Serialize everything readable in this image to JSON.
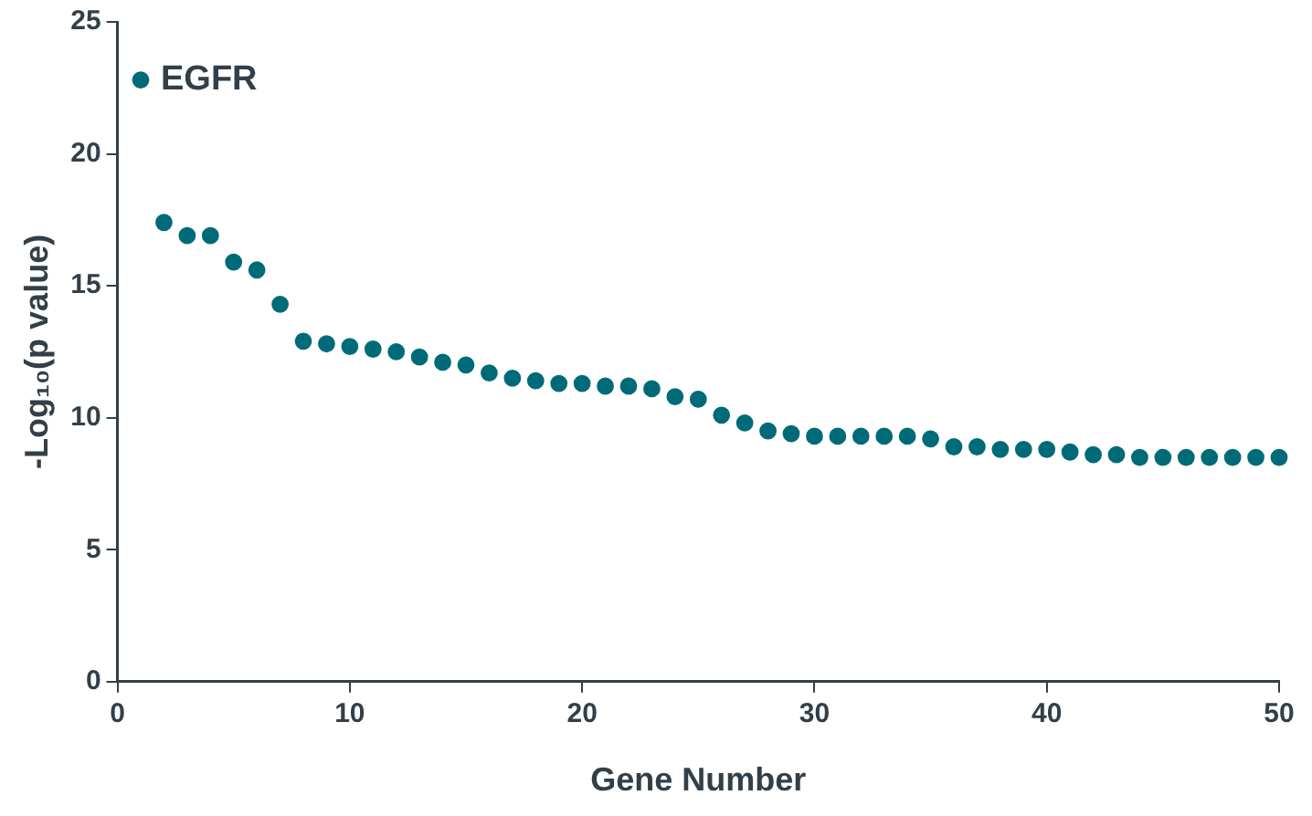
{
  "chart_data": {
    "type": "scatter",
    "xlabel": "Gene Number",
    "ylabel": "-Log₁₀(p value)",
    "x": [
      1,
      2,
      3,
      4,
      5,
      6,
      7,
      8,
      9,
      10,
      11,
      12,
      13,
      14,
      15,
      16,
      17,
      18,
      19,
      20,
      21,
      22,
      23,
      24,
      25,
      26,
      27,
      28,
      29,
      30,
      31,
      32,
      33,
      34,
      35,
      36,
      37,
      38,
      39,
      40,
      41,
      42,
      43,
      44,
      45,
      46,
      47,
      48,
      49,
      50
    ],
    "series": [
      {
        "color": "#006b78",
        "values": [
          22.8,
          17.4,
          16.9,
          16.9,
          15.9,
          15.6,
          14.3,
          12.9,
          12.8,
          12.7,
          12.6,
          12.5,
          12.3,
          12.1,
          12.0,
          11.7,
          11.5,
          11.4,
          11.3,
          11.3,
          11.2,
          11.2,
          11.1,
          10.8,
          10.7,
          10.1,
          9.8,
          9.5,
          9.4,
          9.3,
          9.3,
          9.3,
          9.3,
          9.3,
          9.2,
          8.9,
          8.9,
          8.8,
          8.8,
          8.8,
          8.7,
          8.6,
          8.6,
          8.5,
          8.5,
          8.5,
          8.5,
          8.5,
          8.5,
          8.5
        ]
      }
    ],
    "annotations": [
      {
        "text": "EGFR",
        "x": 1,
        "y": 22.8
      }
    ],
    "xlim": [
      0,
      50
    ],
    "xticks": [
      0,
      10,
      20,
      30,
      40,
      50
    ],
    "ylim": [
      0,
      25
    ],
    "yticks": [
      0,
      5,
      10,
      15,
      20,
      25
    ],
    "grid": false,
    "legend": false,
    "marker": "circle"
  }
}
